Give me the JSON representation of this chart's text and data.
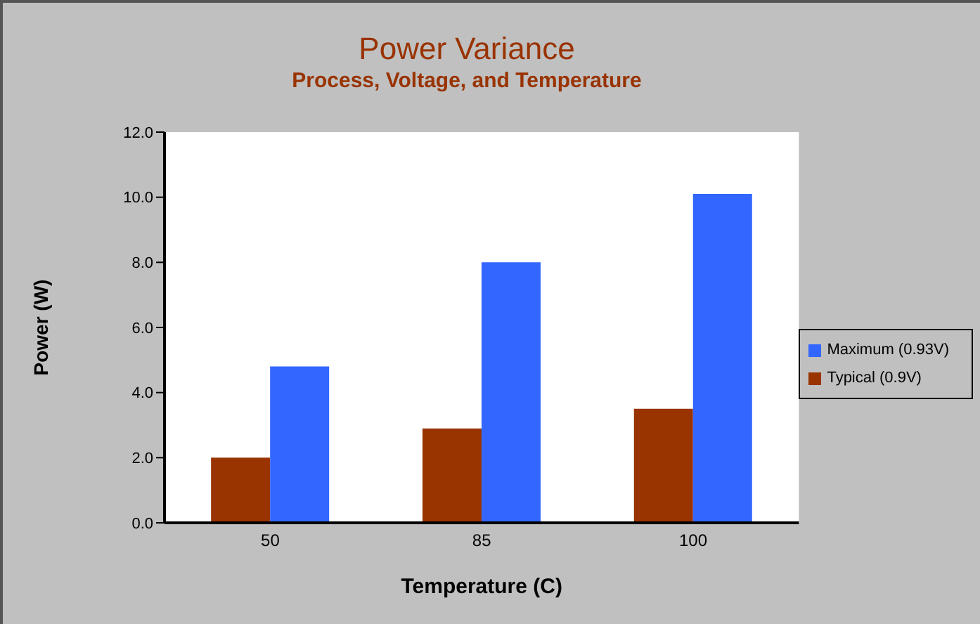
{
  "chart_data": {
    "type": "bar",
    "title": "Power Variance",
    "subtitle": "Process, Voltage, and Temperature",
    "xlabel": "Temperature (C)",
    "ylabel": "Power (W)",
    "categories": [
      "50",
      "85",
      "100"
    ],
    "series": [
      {
        "name": "Typical (0.9V)",
        "color": "#993300",
        "values": [
          2.0,
          2.9,
          3.5
        ]
      },
      {
        "name": "Maximum (0.93V)",
        "color": "#3366ff",
        "values": [
          4.8,
          8.0,
          10.1
        ]
      }
    ],
    "ylim": [
      0,
      12
    ],
    "yticks": [
      {
        "value": 0,
        "label": "0.0"
      },
      {
        "value": 2,
        "label": "2.0"
      },
      {
        "value": 4,
        "label": "4.0"
      },
      {
        "value": 6,
        "label": "6.0"
      },
      {
        "value": 8,
        "label": "8.0"
      },
      {
        "value": 10,
        "label": "10.0"
      },
      {
        "value": 12,
        "label": "12.0"
      }
    ],
    "grid": false,
    "legend": "right"
  }
}
